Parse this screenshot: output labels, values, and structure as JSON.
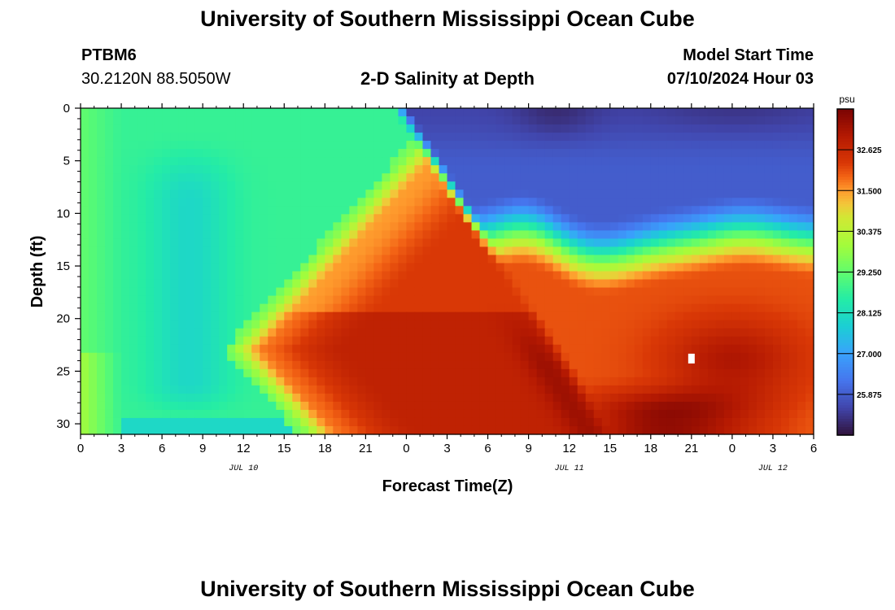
{
  "header": {
    "title": "University of Southern Mississippi Ocean Cube",
    "station": "PTBM6",
    "coords": "30.2120N  88.5050W",
    "subtitle": "2-D Salinity at Depth",
    "model_start_label": "Model Start Time",
    "model_start_value": "07/10/2024 Hour 03"
  },
  "footer": {
    "title": "University of Southern Mississippi Ocean Cube"
  },
  "chart_data": {
    "type": "heatmap",
    "title": "2-D Salinity at Depth",
    "xlabel": "Forecast Time(Z)",
    "ylabel": "Depth (ft)",
    "xlim": [
      0,
      54
    ],
    "ylim": [
      0,
      31
    ],
    "x_ticks": [
      0,
      3,
      6,
      9,
      12,
      15,
      18,
      21,
      24,
      27,
      30,
      33,
      36,
      39,
      42,
      45,
      48,
      51,
      54
    ],
    "x_tick_labels": [
      "0",
      "3",
      "6",
      "9",
      "12",
      "15",
      "18",
      "21",
      "0",
      "3",
      "6",
      "9",
      "12",
      "15",
      "18",
      "21",
      "0",
      "3",
      "6"
    ],
    "y_ticks": [
      0,
      5,
      10,
      15,
      20,
      25,
      30
    ],
    "y_tick_labels": [
      "0",
      "5",
      "10",
      "15",
      "20",
      "25",
      "30"
    ],
    "date_labels": [
      {
        "x": 12,
        "label": "JUL 10"
      },
      {
        "x": 36,
        "label": "JUL 11"
      },
      {
        "x": 51,
        "label": "JUL 12"
      }
    ],
    "colorbar": {
      "unit": "psu",
      "range": [
        24.75,
        33.75
      ],
      "ticks": [
        25.875,
        27.0,
        28.125,
        29.25,
        30.375,
        31.5,
        32.625
      ],
      "tick_labels": [
        "25.875",
        "27.000",
        "28.125",
        "29.250",
        "30.375",
        "31.500",
        "32.625"
      ]
    },
    "description": "Salinity (psu) vs forecast hour and depth; low (~25.5) surface water after hour 24 over high (~33.5) bottom water"
  }
}
